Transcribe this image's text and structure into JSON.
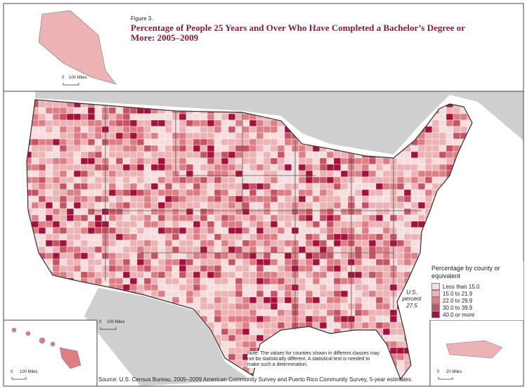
{
  "header": {
    "figure": "Figure 3.",
    "title": "Percentage of People 25 Years and Over Who Have Completed a Bachelor’s Degree or More: 2005–2009"
  },
  "scale_bars": {
    "alaska": {
      "zero": "0",
      "distance": "100 Miles"
    },
    "contiguous": {
      "zero": "0",
      "distance": "100 Miles"
    },
    "hawaii": {
      "zero": "0",
      "distance": "100 Miles"
    },
    "puerto_rico": {
      "zero": "0",
      "distance": "20 Miles"
    }
  },
  "legend": {
    "title": "Percentage by county or equivalent",
    "classes": [
      {
        "label": "Less than 15.0",
        "color": "#f6dcdc"
      },
      {
        "label": "15.0 to 21.9",
        "color": "#edb2b3"
      },
      {
        "label": "22.0 to 29.9",
        "color": "#de7d83"
      },
      {
        "label": "30.0 to 39.9",
        "color": "#c75262"
      },
      {
        "label": "40.0 or more",
        "color": "#a5103c"
      }
    ]
  },
  "us_percent": {
    "label": "U.S. percent",
    "value": 27.5
  },
  "note": "Note: The values for counties shown in different classes may not be statistically different. A statistical test is needed to make such a determination.",
  "source": "Source: U.S. Census Bureau, 2005–2009 American Community Survey and Puerto Rico Community Survey, 5-year estimates."
}
